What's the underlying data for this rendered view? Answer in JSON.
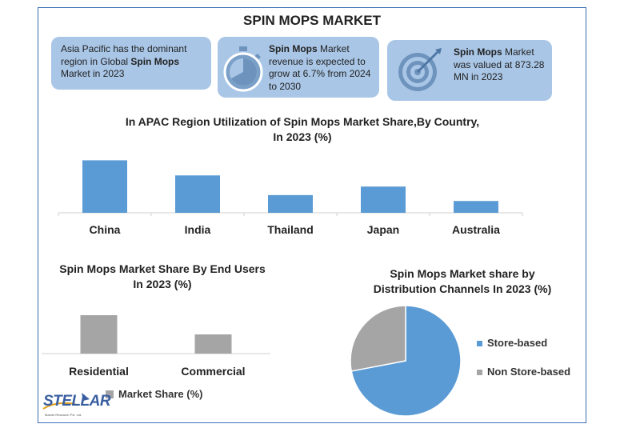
{
  "title": "SPIN MOPS MARKET",
  "info": {
    "box1": {
      "pre": "Asia Pacific has the dominant region in Global ",
      "bold": "Spin Mops",
      "post": " Market in 2023"
    },
    "box2": {
      "bold": "Spin Mops",
      "post": " Market revenue is expected to grow at 6.7% from 2024 to 2030",
      "icon": "stopwatch-icon"
    },
    "box3": {
      "bold": "Spin Mops",
      "post": " Market was valued at 873.28 MN in 2023",
      "icon": "target-icon"
    }
  },
  "colors": {
    "blue_bar": "#5b9bd5",
    "grey_bar": "#a5a5a5",
    "box": "#a9c6e6",
    "frame": "#3d6fb4",
    "pie_store": "#5b9bd5",
    "pie_non_store": "#a5a5a5"
  },
  "chart_data": [
    {
      "type": "bar",
      "title": "In APAC Region Utilization of Spin Mops Market Share,By Country,",
      "subtitle": "In 2023 (%)",
      "categories": [
        "China",
        "India",
        "Thailand",
        "Japan",
        "Australia"
      ],
      "values": [
        80,
        57,
        27,
        40,
        18
      ],
      "ylim": [
        0,
        100
      ],
      "grid": false
    },
    {
      "type": "bar",
      "title": "Spin Mops Market Share By End Users",
      "subtitle": "In 2023 (%)",
      "categories": [
        "Residential",
        "Commercial"
      ],
      "series": [
        {
          "name": "Market Share (%)",
          "values": [
            64,
            32
          ]
        }
      ],
      "ylim": [
        0,
        100
      ],
      "legend": "bottom",
      "grid": false
    },
    {
      "type": "pie",
      "title": "Spin Mops Market share by",
      "subtitle": "Distribution Channels In 2023 (%)",
      "labels": [
        "Store-based",
        "Non Store-based"
      ],
      "values": [
        72,
        28
      ],
      "legend": "right"
    }
  ],
  "logo": {
    "name": "STELLAR",
    "tagline": "Market Research Pvt. Ltd."
  }
}
